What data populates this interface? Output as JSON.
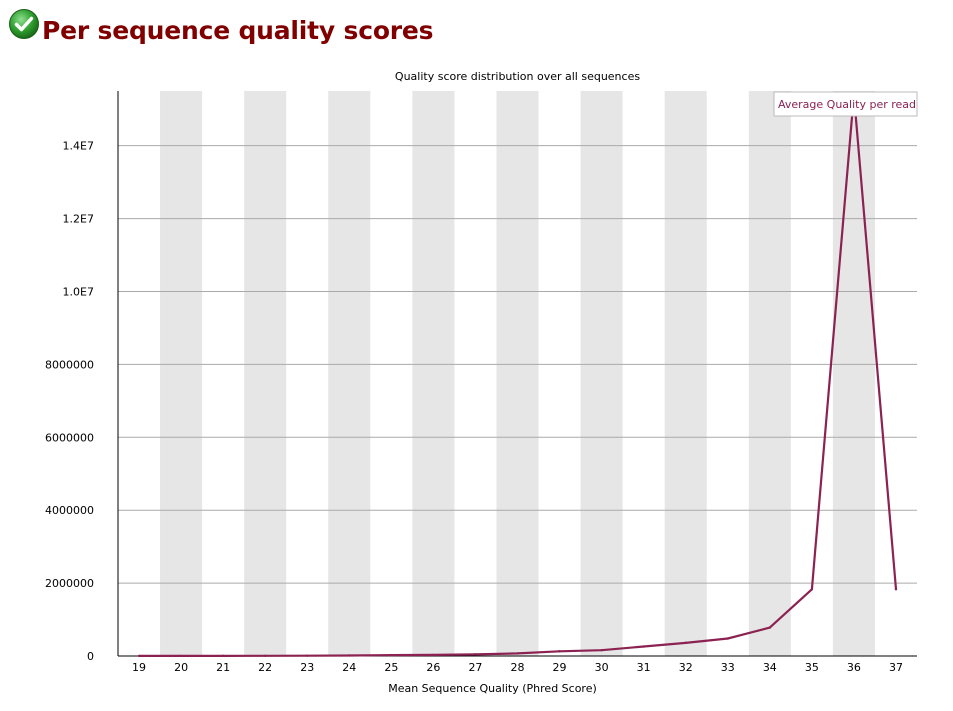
{
  "header": {
    "title": "Per sequence quality scores",
    "status_icon": "check-circle-icon",
    "status_color": "#2e9e2e"
  },
  "chart_data": {
    "type": "line",
    "title": "Quality score distribution over all sequences",
    "xlabel": "Mean Sequence Quality (Phred Score)",
    "ylabel": "",
    "categories": [
      "19",
      "20",
      "21",
      "22",
      "23",
      "24",
      "25",
      "26",
      "27",
      "28",
      "29",
      "30",
      "31",
      "32",
      "33",
      "34",
      "35",
      "36",
      "37"
    ],
    "series": [
      {
        "name": "Average Quality per read",
        "color": "#8b2252",
        "values": [
          2000,
          3000,
          4000,
          6000,
          9000,
          15000,
          25000,
          30000,
          45000,
          70000,
          130000,
          160000,
          260000,
          360000,
          480000,
          780000,
          1830000,
          15400000,
          1830000
        ]
      }
    ],
    "yticks": [
      {
        "value": 0,
        "label": "0"
      },
      {
        "value": 2000000,
        "label": "2000000"
      },
      {
        "value": 4000000,
        "label": "4000000"
      },
      {
        "value": 6000000,
        "label": "6000000"
      },
      {
        "value": 8000000,
        "label": "8000000"
      },
      {
        "value": 10000000,
        "label": "1.0E7"
      },
      {
        "value": 12000000,
        "label": "1.2E7"
      },
      {
        "value": 14000000,
        "label": "1.4E7"
      }
    ],
    "ylim": [
      0,
      15500000
    ],
    "band_color": "#e6e6e6",
    "grid_color": "#aaaaaa",
    "grid": true,
    "legend_position": "top-right"
  }
}
